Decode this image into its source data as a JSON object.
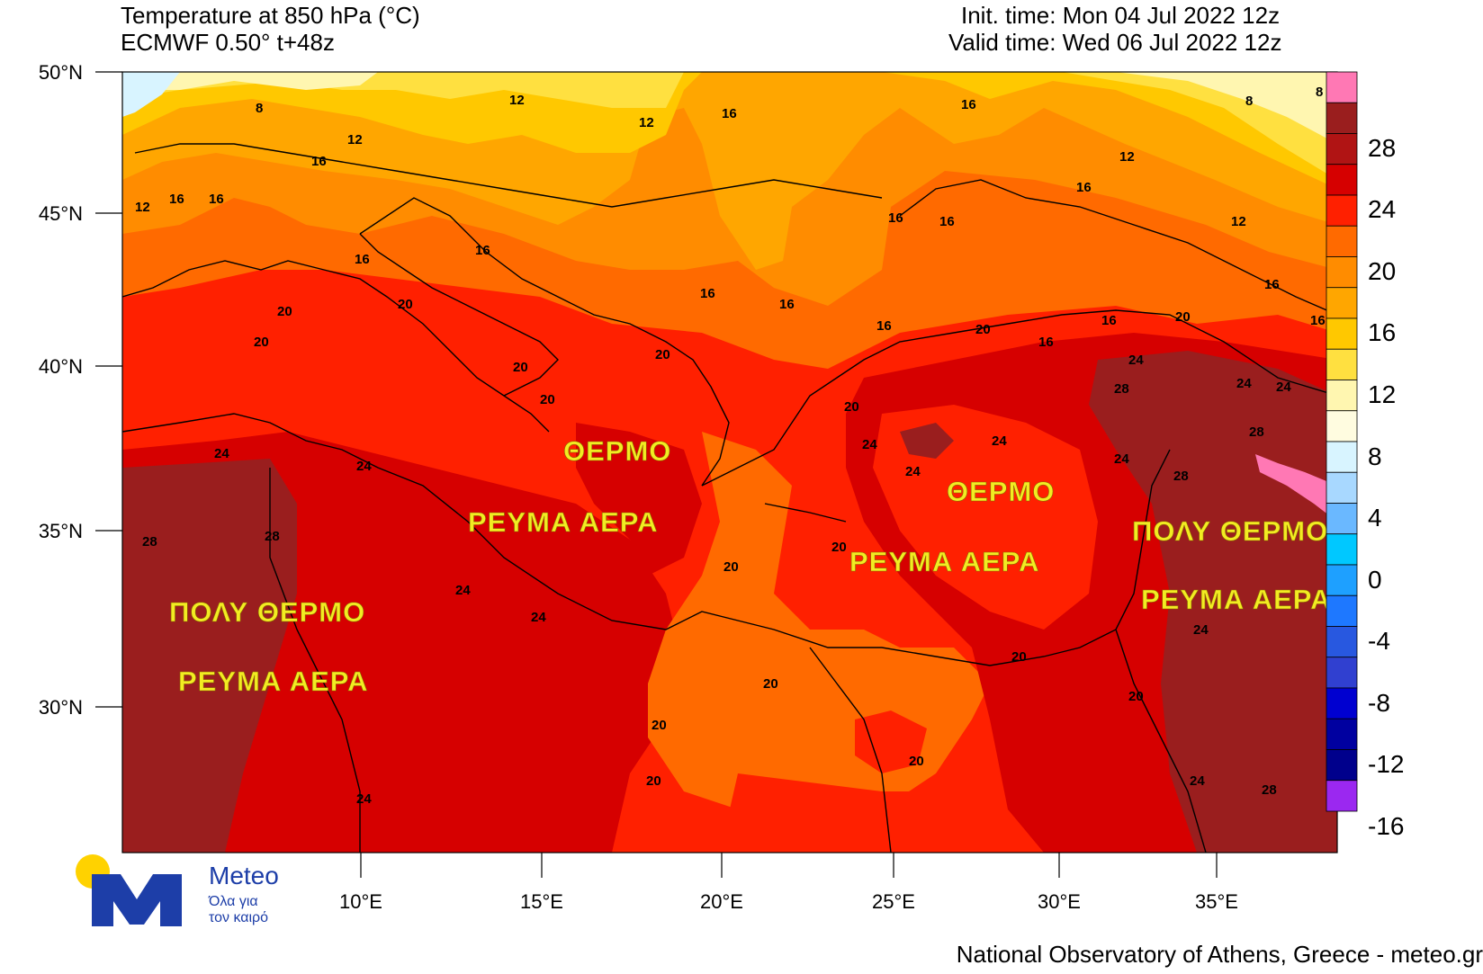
{
  "header": {
    "title_line1": "Temperature at 850 hPa (°C)",
    "title_line2": "ECMWF 0.50° t+48z",
    "init_time": "Init. time: Mon 04 Jul 2022 12z",
    "valid_time": "Valid time: Wed 06 Jul 2022 12z"
  },
  "axes": {
    "lat_labels": [
      "50°N",
      "45°N",
      "40°N",
      "35°N",
      "30°N"
    ],
    "lon_labels": [
      "10°E",
      "15°E",
      "20°E",
      "25°E",
      "30°E",
      "35°E"
    ]
  },
  "colorbar": {
    "labels": [
      "28",
      "24",
      "20",
      "16",
      "12",
      "8",
      "4",
      "0",
      "-4",
      "-8",
      "-12",
      "-16"
    ],
    "colors": [
      "#ff78b4",
      "#9a1e1e",
      "#b01414",
      "#d60000",
      "#ff2000",
      "#ff6a00",
      "#ff8c00",
      "#ffa600",
      "#ffc800",
      "#ffe040",
      "#fff6b0",
      "#fffce0",
      "#d8f4ff",
      "#a8d8ff",
      "#6ab8ff",
      "#00c8ff",
      "#1ea0ff",
      "#1e78ff",
      "#2858e0",
      "#3040d0",
      "#0000d0",
      "#0000a0",
      "#00008c",
      "#9b28f0"
    ]
  },
  "map": {
    "contour_labels": [
      "8",
      "12",
      "12",
      "12",
      "16",
      "16",
      "16",
      "12",
      "16",
      "16",
      "16",
      "16",
      "16",
      "16",
      "16",
      "16",
      "12",
      "16",
      "12",
      "16",
      "8",
      "8",
      "16",
      "16",
      "16",
      "16",
      "20",
      "20",
      "20",
      "20",
      "20",
      "20",
      "20",
      "20",
      "20",
      "20",
      "20",
      "20",
      "20",
      "20",
      "20",
      "20",
      "24",
      "24",
      "24",
      "24",
      "24",
      "24",
      "24",
      "24",
      "24",
      "24",
      "24",
      "24",
      "24",
      "24",
      "28",
      "28",
      "28",
      "28",
      "28",
      "28",
      "20"
    ],
    "region_labels": [
      "ΘΕΡΜΟ",
      "ΡΕΥΜΑ ΑΕΡΑ",
      "ΘΕΡΜΟ",
      "ΡΕΥΜΑ ΑΕΡΑ",
      "ΠΟΛΥ ΘΕΡΜΟ",
      "ΡΕΥΜΑ ΑΕΡΑ",
      "ΠΟΛΥ ΘΕΡΜΟ",
      "ΡΕΥΜΑ ΑΕΡΑ"
    ]
  },
  "logo": {
    "name": "Meteo",
    "tagline_line1": "Όλα για",
    "tagline_line2": "τον καιρό"
  },
  "footer": "National Observatory of Athens, Greece - meteo.gr"
}
